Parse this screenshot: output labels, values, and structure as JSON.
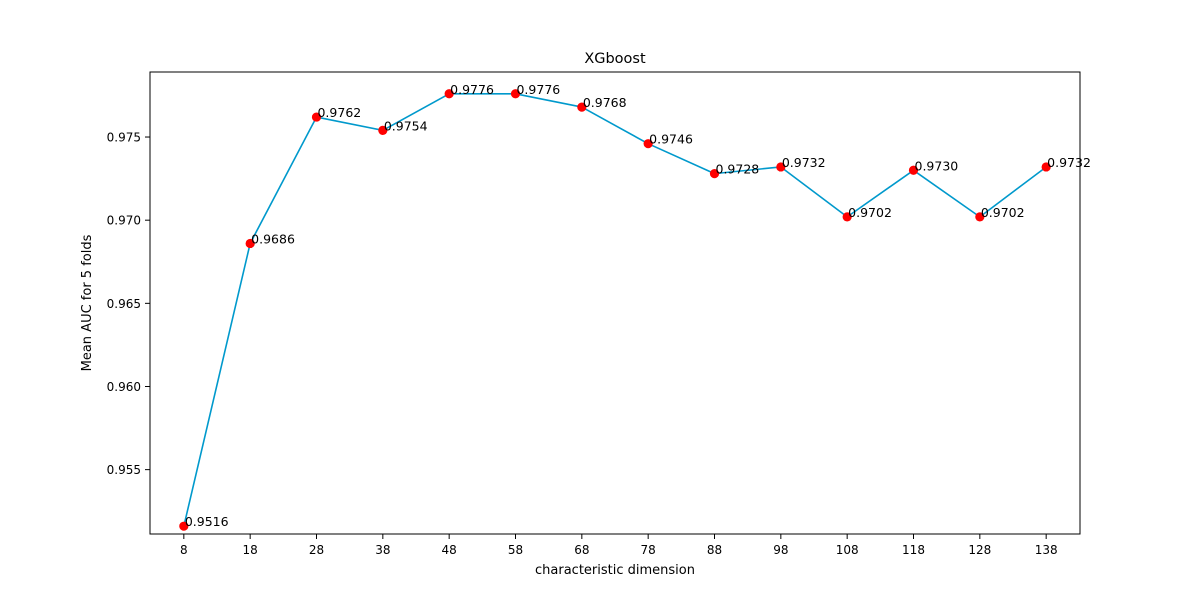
{
  "chart_data": {
    "type": "line",
    "title": "XGboost",
    "xlabel": "characteristic dimension",
    "ylabel": "Mean AUC for 5 folds",
    "x": [
      8,
      18,
      28,
      38,
      48,
      58,
      68,
      78,
      88,
      98,
      108,
      118,
      128,
      138
    ],
    "series": [
      {
        "values": [
          0.9516,
          0.9686,
          0.9762,
          0.9754,
          0.9776,
          0.9776,
          0.9768,
          0.9746,
          0.9728,
          0.9732,
          0.9702,
          0.973,
          0.9702,
          0.9732
        ],
        "data_labels": [
          "0.9516",
          "0.9686",
          "0.9762",
          "0.9754",
          "0.9776",
          "0.9776",
          "0.9768",
          "0.9746",
          "0.9728",
          "0.9732",
          "0.9702",
          "0.9730",
          "0.9702",
          "0.9732"
        ],
        "line_color": "#0099cc",
        "marker_color": "#ff0000"
      }
    ],
    "x_ticks": [
      "8",
      "18",
      "28",
      "38",
      "48",
      "58",
      "68",
      "78",
      "88",
      "98",
      "108",
      "118",
      "128",
      "138"
    ],
    "y_ticks": [
      "0.955",
      "0.960",
      "0.965",
      "0.970",
      "0.975"
    ],
    "y_tick_values": [
      0.955,
      0.96,
      0.965,
      0.97,
      0.975
    ],
    "xlim": [
      2.9,
      143.1
    ],
    "ylim": [
      0.95113,
      0.97891
    ],
    "grid": false,
    "legend": "none"
  }
}
